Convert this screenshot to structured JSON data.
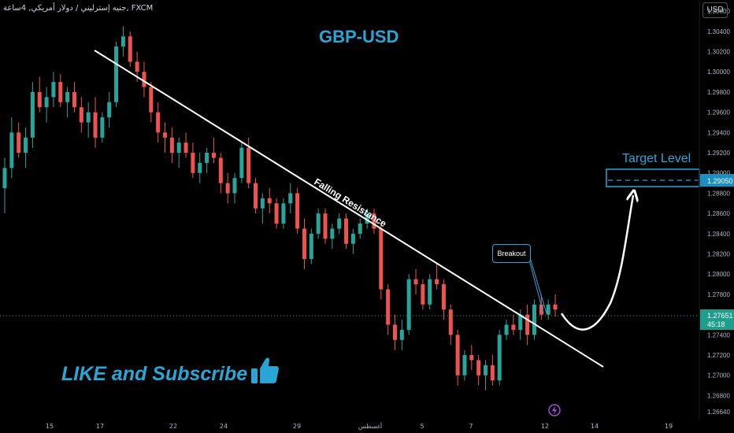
{
  "header": {
    "symbol": "جنيه إسترليني / دولار أمريكي, 4ساعة, FXCM",
    "currency_button": "USD"
  },
  "annotations": {
    "title": "GBP-USD",
    "trendline_label": "Falling Resistance",
    "breakout_label": "Breakout",
    "target_label": "Target Level",
    "cta_text": "LIKE and Subscribe",
    "thumb_icon": "thumbs-up-icon",
    "flash_icon": "lightning-icon"
  },
  "price_badges": {
    "current_price": "1.27651",
    "countdown": "45:18",
    "target_price": "1.29050"
  },
  "colors": {
    "up": "#26a69a",
    "down": "#ef5350",
    "accent": "#2aa6d6",
    "trendline": "#ffffff"
  },
  "chart_data": {
    "type": "candlestick",
    "title": "GBP-USD",
    "y_ticks": [
      "1.30600",
      "1.30400",
      "1.30200",
      "1.30000",
      "1.29800",
      "1.29600",
      "1.29400",
      "1.29200",
      "1.29000",
      "1.28800",
      "1.28600",
      "1.28400",
      "1.28200",
      "1.28000",
      "1.27800",
      "1.27600",
      "1.27400",
      "1.27200",
      "1.27000",
      "1.26800",
      "1.26640"
    ],
    "x_ticks": [
      "15",
      "17",
      "22",
      "24",
      "29",
      "أغسطس",
      "5",
      "7",
      "12",
      "14",
      "19"
    ],
    "ylim": [
      1.2657,
      1.3071
    ],
    "current_price": 1.27651,
    "target_price": 1.2905,
    "trendline": {
      "from": [
        "2024-07-17",
        1.3048
      ],
      "to": [
        "2024-08-14",
        1.2712
      ]
    },
    "candles": [
      [
        1.2885,
        1.2915,
        1.286,
        1.2905
      ],
      [
        1.2905,
        1.2955,
        1.2895,
        1.294
      ],
      [
        1.294,
        1.295,
        1.2915,
        1.292
      ],
      [
        1.292,
        1.2945,
        1.2905,
        1.2935
      ],
      [
        1.2935,
        1.299,
        1.2925,
        1.298
      ],
      [
        1.298,
        1.2995,
        1.296,
        1.2965
      ],
      [
        1.2965,
        1.2985,
        1.295,
        1.2975
      ],
      [
        1.2975,
        1.3,
        1.2965,
        1.299
      ],
      [
        1.299,
        1.2998,
        1.2965,
        1.297
      ],
      [
        1.297,
        1.2985,
        1.2955,
        1.298
      ],
      [
        1.298,
        1.299,
        1.296,
        1.2965
      ],
      [
        1.2965,
        1.2975,
        1.294,
        1.295
      ],
      [
        1.295,
        1.297,
        1.2935,
        1.296
      ],
      [
        1.296,
        1.2975,
        1.2925,
        1.2935
      ],
      [
        1.2935,
        1.296,
        1.293,
        1.2955
      ],
      [
        1.2955,
        1.298,
        1.2945,
        1.297
      ],
      [
        1.297,
        1.303,
        1.2965,
        1.3025
      ],
      [
        1.3025,
        1.3045,
        1.3015,
        1.3035
      ],
      [
        1.3035,
        1.304,
        1.3005,
        1.301
      ],
      [
        1.301,
        1.302,
        1.299,
        1.3
      ],
      [
        1.3,
        1.301,
        1.2975,
        1.2985
      ],
      [
        1.2985,
        1.299,
        1.295,
        1.296
      ],
      [
        1.296,
        1.297,
        1.293,
        1.294
      ],
      [
        1.294,
        1.295,
        1.292,
        1.2935
      ],
      [
        1.2935,
        1.2945,
        1.291,
        1.292
      ],
      [
        1.292,
        1.2935,
        1.2905,
        1.293
      ],
      [
        1.293,
        1.294,
        1.2915,
        1.292
      ],
      [
        1.292,
        1.293,
        1.2895,
        1.29
      ],
      [
        1.29,
        1.292,
        1.289,
        1.291
      ],
      [
        1.291,
        1.2925,
        1.29,
        1.292
      ],
      [
        1.292,
        1.2935,
        1.291,
        1.2915
      ],
      [
        1.2915,
        1.292,
        1.288,
        1.289
      ],
      [
        1.289,
        1.29,
        1.287,
        1.288
      ],
      [
        1.288,
        1.29,
        1.287,
        1.2895
      ],
      [
        1.2895,
        1.293,
        1.289,
        1.2925
      ],
      [
        1.2925,
        1.2935,
        1.2885,
        1.289
      ],
      [
        1.289,
        1.2895,
        1.286,
        1.2865
      ],
      [
        1.2865,
        1.288,
        1.285,
        1.2875
      ],
      [
        1.2875,
        1.2885,
        1.286,
        1.287
      ],
      [
        1.287,
        1.2875,
        1.2845,
        1.285
      ],
      [
        1.285,
        1.2875,
        1.2845,
        1.287
      ],
      [
        1.287,
        1.289,
        1.286,
        1.288
      ],
      [
        1.288,
        1.2885,
        1.284,
        1.2845
      ],
      [
        1.2845,
        1.2855,
        1.2805,
        1.2815
      ],
      [
        1.2815,
        1.2845,
        1.281,
        1.284
      ],
      [
        1.284,
        1.2865,
        1.2835,
        1.286
      ],
      [
        1.286,
        1.2865,
        1.283,
        1.2835
      ],
      [
        1.2835,
        1.285,
        1.2825,
        1.2845
      ],
      [
        1.2845,
        1.286,
        1.284,
        1.2855
      ],
      [
        1.2855,
        1.286,
        1.2825,
        1.283
      ],
      [
        1.283,
        1.2845,
        1.282,
        1.284
      ],
      [
        1.284,
        1.2855,
        1.2835,
        1.285
      ],
      [
        1.285,
        1.2865,
        1.2845,
        1.286
      ],
      [
        1.286,
        1.2865,
        1.284,
        1.2845
      ],
      [
        1.2845,
        1.285,
        1.2775,
        1.2785
      ],
      [
        1.2785,
        1.279,
        1.274,
        1.275
      ],
      [
        1.275,
        1.276,
        1.2725,
        1.2735
      ],
      [
        1.2735,
        1.2755,
        1.2725,
        1.2745
      ],
      [
        1.2745,
        1.28,
        1.274,
        1.2795
      ],
      [
        1.2795,
        1.2805,
        1.278,
        1.279
      ],
      [
        1.279,
        1.2795,
        1.2765,
        1.277
      ],
      [
        1.277,
        1.28,
        1.2765,
        1.2795
      ],
      [
        1.2795,
        1.281,
        1.2785,
        1.279
      ],
      [
        1.279,
        1.2795,
        1.2755,
        1.2765
      ],
      [
        1.2765,
        1.277,
        1.273,
        1.274
      ],
      [
        1.274,
        1.2745,
        1.269,
        1.27
      ],
      [
        1.27,
        1.2725,
        1.2695,
        1.272
      ],
      [
        1.272,
        1.273,
        1.2705,
        1.2715
      ],
      [
        1.2715,
        1.272,
        1.269,
        1.27
      ],
      [
        1.27,
        1.2715,
        1.2685,
        1.271
      ],
      [
        1.271,
        1.272,
        1.269,
        1.2695
      ],
      [
        1.2695,
        1.2745,
        1.269,
        1.274
      ],
      [
        1.274,
        1.2755,
        1.2735,
        1.275
      ],
      [
        1.275,
        1.276,
        1.274,
        1.2745
      ],
      [
        1.2745,
        1.2765,
        1.2735,
        1.276
      ],
      [
        1.276,
        1.277,
        1.273,
        1.274
      ],
      [
        1.274,
        1.2775,
        1.2735,
        1.277
      ],
      [
        1.277,
        1.278,
        1.2755,
        1.276
      ],
      [
        1.276,
        1.2775,
        1.2755,
        1.277
      ],
      [
        1.277,
        1.278,
        1.2758,
        1.2765
      ]
    ]
  }
}
